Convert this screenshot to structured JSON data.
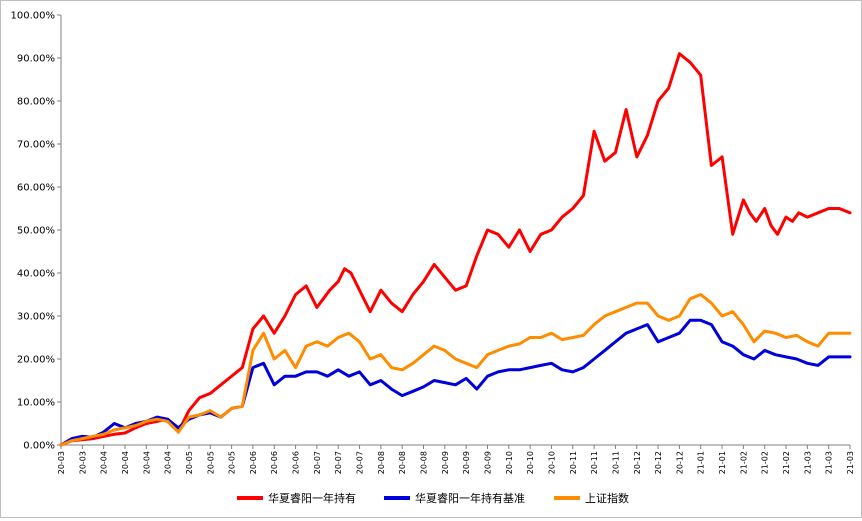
{
  "chart_data": {
    "type": "line",
    "title": "",
    "xlabel": "",
    "ylabel": "",
    "ylim": [
      0,
      1.0
    ],
    "y_ticks": [
      "0.00%",
      "10.00%",
      "20.00%",
      "30.00%",
      "40.00%",
      "50.00%",
      "60.00%",
      "70.00%",
      "80.00%",
      "90.00%",
      "100.00%"
    ],
    "x_ticks": [
      "20-03",
      "20-03",
      "20-04",
      "20-04",
      "20-04",
      "20-04",
      "20-05",
      "20-05",
      "20-05",
      "20-06",
      "20-06",
      "20-06",
      "20-07",
      "20-07",
      "20-07",
      "20-08",
      "20-08",
      "20-08",
      "20-09",
      "20-09",
      "20-09",
      "20-10",
      "20-10",
      "20-10",
      "20-11",
      "20-11",
      "20-11",
      "20-12",
      "20-12",
      "20-12",
      "21-01",
      "21-01",
      "21-02",
      "21-02",
      "21-02",
      "21-03",
      "21-03",
      "21-03"
    ],
    "legend_position": "bottom",
    "grid": false,
    "series": [
      {
        "name": "华夏睿阳一年持有",
        "color": "#ff0000",
        "x": [
          0,
          0.5,
          1,
          1.5,
          2,
          2.5,
          3,
          3.5,
          4,
          4.5,
          5,
          5.5,
          6,
          6.5,
          7,
          7.5,
          8,
          8.5,
          9,
          9.5,
          10,
          10.5,
          11,
          11.5,
          12,
          12.3,
          12.6,
          13,
          13.3,
          13.6,
          14,
          14.5,
          15,
          15.5,
          16,
          16.5,
          17,
          17.5,
          18,
          18.5,
          19,
          19.5,
          20,
          20.5,
          21,
          21.5,
          22,
          22.5,
          23,
          23.5,
          24,
          24.5,
          25,
          25.5,
          26,
          26.5,
          27,
          27.5,
          28,
          28.5,
          29,
          29.5,
          30,
          30.5,
          31,
          31.5,
          32,
          32.3,
          32.6,
          33,
          33.3,
          33.6,
          34,
          34.3,
          34.6,
          35,
          35.5,
          36,
          36.5,
          37
        ],
        "values": [
          0.0,
          0.01,
          0.012,
          0.015,
          0.02,
          0.025,
          0.028,
          0.04,
          0.05,
          0.055,
          0.06,
          0.03,
          0.08,
          0.11,
          0.12,
          0.14,
          0.16,
          0.18,
          0.27,
          0.3,
          0.26,
          0.3,
          0.35,
          0.37,
          0.32,
          0.34,
          0.36,
          0.38,
          0.41,
          0.4,
          0.36,
          0.31,
          0.36,
          0.33,
          0.31,
          0.35,
          0.38,
          0.42,
          0.39,
          0.36,
          0.37,
          0.44,
          0.5,
          0.49,
          0.46,
          0.5,
          0.45,
          0.49,
          0.5,
          0.53,
          0.55,
          0.58,
          0.73,
          0.66,
          0.68,
          0.78,
          0.67,
          0.72,
          0.8,
          0.83,
          0.91,
          0.89,
          0.86,
          0.65,
          0.67,
          0.49,
          0.57,
          0.54,
          0.52,
          0.55,
          0.51,
          0.49,
          0.53,
          0.52,
          0.54,
          0.53,
          0.54,
          0.55,
          0.55,
          0.54
        ]
      },
      {
        "name": "华夏睿阳一年持有基准",
        "color": "#0000dd",
        "x": [
          0,
          0.5,
          1,
          1.5,
          2,
          2.5,
          3,
          3.5,
          4,
          4.5,
          5,
          5.5,
          6,
          6.5,
          7,
          7.5,
          8,
          8.5,
          9,
          9.5,
          10,
          10.5,
          11,
          11.5,
          12,
          12.5,
          13,
          13.5,
          14,
          14.5,
          15,
          15.5,
          16,
          16.5,
          17,
          17.5,
          18,
          18.5,
          19,
          19.5,
          20,
          20.5,
          21,
          21.5,
          22,
          22.5,
          23,
          23.5,
          24,
          24.5,
          25,
          25.5,
          26,
          26.5,
          27,
          27.5,
          28,
          28.5,
          29,
          29.5,
          30,
          30.5,
          31,
          31.5,
          32,
          32.5,
          33,
          33.5,
          34,
          34.5,
          35,
          35.5,
          36,
          36.5,
          37
        ],
        "values": [
          0.0,
          0.015,
          0.02,
          0.018,
          0.03,
          0.05,
          0.04,
          0.05,
          0.055,
          0.065,
          0.06,
          0.04,
          0.06,
          0.07,
          0.075,
          0.065,
          0.085,
          0.09,
          0.18,
          0.19,
          0.14,
          0.16,
          0.16,
          0.17,
          0.17,
          0.16,
          0.175,
          0.16,
          0.17,
          0.14,
          0.15,
          0.13,
          0.115,
          0.125,
          0.135,
          0.15,
          0.145,
          0.14,
          0.155,
          0.13,
          0.16,
          0.17,
          0.175,
          0.175,
          0.18,
          0.185,
          0.19,
          0.175,
          0.17,
          0.18,
          0.2,
          0.22,
          0.24,
          0.26,
          0.27,
          0.28,
          0.24,
          0.25,
          0.26,
          0.29,
          0.29,
          0.28,
          0.24,
          0.23,
          0.21,
          0.2,
          0.22,
          0.21,
          0.205,
          0.2,
          0.19,
          0.185,
          0.205,
          0.205,
          0.205
        ]
      },
      {
        "name": "上证指数",
        "color": "#ff8c00",
        "x": [
          0,
          0.5,
          1,
          1.5,
          2,
          2.5,
          3,
          3.5,
          4,
          4.5,
          5,
          5.5,
          6,
          6.5,
          7,
          7.5,
          8,
          8.5,
          9,
          9.5,
          10,
          10.5,
          11,
          11.5,
          12,
          12.5,
          13,
          13.5,
          14,
          14.5,
          15,
          15.5,
          16,
          16.5,
          17,
          17.5,
          18,
          18.5,
          19,
          19.5,
          20,
          20.5,
          21,
          21.5,
          22,
          22.5,
          23,
          23.5,
          24,
          24.5,
          25,
          25.5,
          26,
          26.5,
          27,
          27.5,
          28,
          28.5,
          29,
          29.5,
          30,
          30.5,
          31,
          31.5,
          32,
          32.5,
          33,
          33.5,
          34,
          34.5,
          35,
          35.5,
          36,
          36.5,
          37
        ],
        "values": [
          0.0,
          0.01,
          0.015,
          0.02,
          0.025,
          0.035,
          0.04,
          0.045,
          0.055,
          0.06,
          0.055,
          0.03,
          0.065,
          0.07,
          0.08,
          0.065,
          0.085,
          0.09,
          0.22,
          0.26,
          0.2,
          0.22,
          0.18,
          0.23,
          0.24,
          0.23,
          0.25,
          0.26,
          0.24,
          0.2,
          0.21,
          0.18,
          0.175,
          0.19,
          0.21,
          0.23,
          0.22,
          0.2,
          0.19,
          0.18,
          0.21,
          0.22,
          0.23,
          0.235,
          0.25,
          0.25,
          0.26,
          0.245,
          0.25,
          0.255,
          0.28,
          0.3,
          0.31,
          0.32,
          0.33,
          0.33,
          0.3,
          0.29,
          0.3,
          0.34,
          0.35,
          0.33,
          0.3,
          0.31,
          0.28,
          0.24,
          0.265,
          0.26,
          0.25,
          0.255,
          0.24,
          0.23,
          0.26,
          0.26,
          0.26
        ]
      }
    ]
  }
}
